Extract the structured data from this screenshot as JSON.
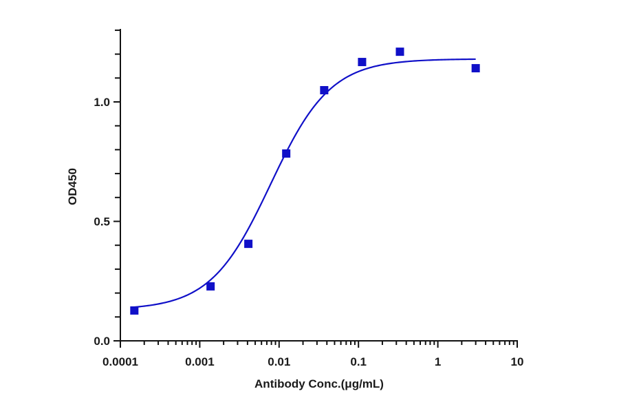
{
  "chart_data": {
    "type": "scatter",
    "title": "",
    "xlabel": "Antibody Conc.(μg/mL)",
    "ylabel": "OD450",
    "x_scale": "log",
    "xlim": [
      0.0001,
      10
    ],
    "ylim": [
      0,
      1.3
    ],
    "x_ticks": [
      {
        "value": 0.0001,
        "label": "0.0001"
      },
      {
        "value": 0.001,
        "label": "0.001"
      },
      {
        "value": 0.01,
        "label": "0.01"
      },
      {
        "value": 0.1,
        "label": "0.1"
      },
      {
        "value": 1,
        "label": "1"
      },
      {
        "value": 10,
        "label": "10"
      }
    ],
    "y_ticks": [
      {
        "value": 0.0,
        "label": "0.0"
      },
      {
        "value": 0.5,
        "label": "0.5"
      },
      {
        "value": 1.0,
        "label": "1.0"
      }
    ],
    "y_minor_step": 0.1,
    "grid": false,
    "legend": null,
    "series": [
      {
        "name": "OD450",
        "marker": "square",
        "color": "#1010c8",
        "points": [
          {
            "x": 0.00015,
            "y": 0.127
          },
          {
            "x": 0.00137,
            "y": 0.228
          },
          {
            "x": 0.0041,
            "y": 0.406
          },
          {
            "x": 0.0123,
            "y": 0.784
          },
          {
            "x": 0.037,
            "y": 1.049
          },
          {
            "x": 0.111,
            "y": 1.167
          },
          {
            "x": 0.333,
            "y": 1.21
          },
          {
            "x": 3.0,
            "y": 1.141
          }
        ]
      }
    ],
    "fit": {
      "model": "4PL",
      "color": "#1010c8",
      "bottom": 0.13,
      "top": 1.18,
      "ec50": 0.0078,
      "hill": 1.15,
      "x_range": [
        0.00015,
        3.0
      ]
    }
  }
}
